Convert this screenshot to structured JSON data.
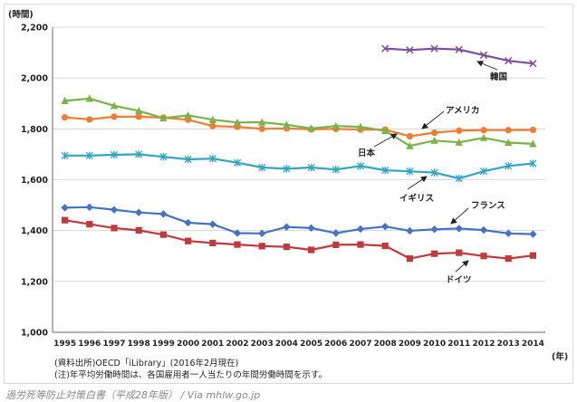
{
  "chart_data": {
    "type": "line",
    "ylabel": "(時間)",
    "xlabel": "(年)",
    "ylim": [
      1000,
      2200
    ],
    "y_ticks": [
      "1,000",
      "1,200",
      "1,400",
      "1,600",
      "1,800",
      "2,000",
      "2,200"
    ],
    "y_tick_values": [
      1000,
      1200,
      1400,
      1600,
      1800,
      2000,
      2200
    ],
    "x": [
      "1995",
      "1996",
      "1997",
      "1998",
      "1999",
      "2000",
      "2001",
      "2002",
      "2003",
      "2004",
      "2005",
      "2006",
      "2007",
      "2008",
      "2009",
      "2010",
      "2011",
      "2012",
      "2013",
      "2014"
    ],
    "series": [
      {
        "name": "韓国",
        "color": "#7d4e9e",
        "marker": "x",
        "values": [
          null,
          null,
          null,
          null,
          null,
          null,
          null,
          null,
          null,
          null,
          null,
          null,
          null,
          2116,
          2110,
          2116,
          2112,
          2090,
          2068,
          2057
        ]
      },
      {
        "name": "アメリカ",
        "color": "#ed7d31",
        "marker": "circle",
        "values": [
          1845,
          1837,
          1848,
          1848,
          1844,
          1836,
          1811,
          1808,
          1800,
          1802,
          1798,
          1800,
          1797,
          1797,
          1771,
          1785,
          1793,
          1795,
          1795,
          1796
        ]
      },
      {
        "name": "日本",
        "color": "#7bb24a",
        "marker": "triangle",
        "values": [
          1910,
          1919,
          1891,
          1871,
          1842,
          1853,
          1836,
          1825,
          1826,
          1816,
          1802,
          1811,
          1808,
          1792,
          1733,
          1754,
          1747,
          1765,
          1746,
          1741
        ]
      },
      {
        "name": "イギリス",
        "color": "#2fa7c2",
        "marker": "asterisk",
        "values": [
          1695,
          1695,
          1698,
          1700,
          1690,
          1680,
          1683,
          1667,
          1648,
          1643,
          1648,
          1640,
          1654,
          1637,
          1633,
          1628,
          1605,
          1633,
          1654,
          1664
        ]
      },
      {
        "name": "フランス",
        "color": "#4472c4",
        "marker": "diamond",
        "values": [
          1490,
          1492,
          1482,
          1471,
          1465,
          1431,
          1425,
          1390,
          1389,
          1414,
          1410,
          1390,
          1406,
          1416,
          1399,
          1405,
          1408,
          1402,
          1389,
          1386
        ]
      },
      {
        "name": "ドイツ",
        "color": "#c0393b",
        "marker": "square",
        "values": [
          1441,
          1425,
          1410,
          1401,
          1384,
          1359,
          1351,
          1345,
          1339,
          1336,
          1324,
          1344,
          1345,
          1340,
          1290,
          1309,
          1313,
          1300,
          1290,
          1302
        ]
      }
    ],
    "grid": true,
    "notes": [
      "(資料出所)OECD「iLibrary」(2016年2月現在)",
      "(注)年平均労働時間は、各国雇用者一人当たりの年間労働時間を示す。"
    ]
  },
  "caption": "過労死等防止対策白書（平成28年版） / Via mhlw.go.jp"
}
